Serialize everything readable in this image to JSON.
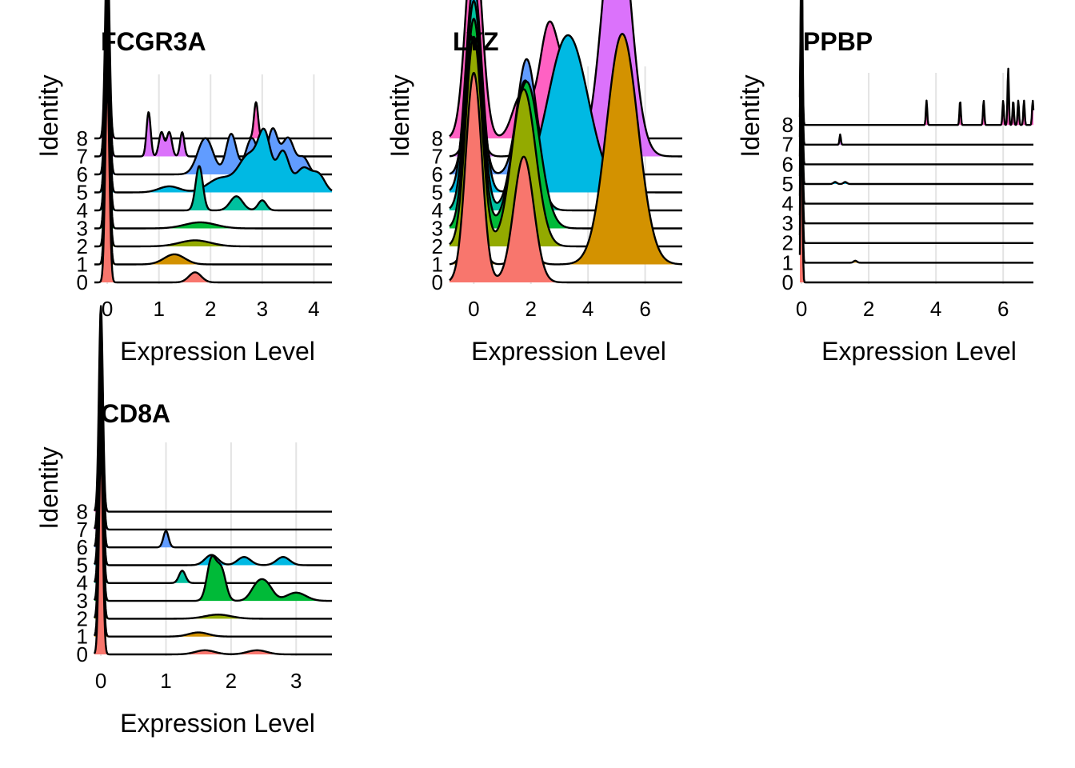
{
  "colors": {
    "0": "#F8766D",
    "1": "#D39200",
    "2": "#93AA00",
    "3": "#00BA38",
    "4": "#00C19F",
    "5": "#00B9E3",
    "6": "#619CFF",
    "7": "#DB72FB",
    "8": "#FF61C3"
  },
  "chart_data": [
    {
      "type": "ridgeline",
      "title": "FCGR3A",
      "xlabel": "Expression Level",
      "ylabel": "Identity",
      "xlim": [
        -0.25,
        4.35
      ],
      "xticks": [
        0,
        1,
        2,
        3,
        4
      ],
      "identities": [
        "0",
        "1",
        "2",
        "3",
        "4",
        "5",
        "6",
        "7",
        "8"
      ],
      "series": [
        {
          "name": "0",
          "peaks": [
            [
              0,
              0.04,
              1.0
            ],
            [
              1.7,
              0.12,
              0.05
            ]
          ]
        },
        {
          "name": "1",
          "peaks": [
            [
              0,
              0.04,
              1.0
            ],
            [
              1.3,
              0.2,
              0.05
            ]
          ]
        },
        {
          "name": "2",
          "peaks": [
            [
              0,
              0.04,
              1.0
            ],
            [
              1.7,
              0.3,
              0.03
            ]
          ]
        },
        {
          "name": "3",
          "peaks": [
            [
              0,
              0.04,
              1.0
            ],
            [
              1.8,
              0.3,
              0.03
            ]
          ]
        },
        {
          "name": "4",
          "peaks": [
            [
              0,
              0.04,
              1.0
            ],
            [
              1.78,
              0.07,
              0.22
            ],
            [
              2.5,
              0.12,
              0.07
            ],
            [
              3.0,
              0.08,
              0.05
            ]
          ]
        },
        {
          "name": "5",
          "peaks": [
            [
              0,
              0.04,
              1.0
            ],
            [
              1.2,
              0.2,
              0.03
            ],
            [
              2.2,
              0.25,
              0.07
            ],
            [
              2.75,
              0.2,
              0.18
            ],
            [
              3.05,
              0.12,
              0.25
            ],
            [
              3.4,
              0.12,
              0.2
            ],
            [
              3.8,
              0.15,
              0.12
            ],
            [
              4.1,
              0.12,
              0.08
            ]
          ]
        },
        {
          "name": "6",
          "peaks": [
            [
              0,
              0.04,
              1.0
            ],
            [
              1.9,
              0.15,
              0.18
            ],
            [
              2.4,
              0.1,
              0.2
            ],
            [
              2.8,
              0.12,
              0.18
            ],
            [
              3.2,
              0.1,
              0.22
            ],
            [
              3.5,
              0.12,
              0.18
            ],
            [
              3.8,
              0.1,
              0.08
            ]
          ]
        },
        {
          "name": "7",
          "peaks": [
            [
              0,
              0.04,
              1.0
            ],
            [
              0.8,
              0.04,
              0.22
            ],
            [
              1.05,
              0.05,
              0.12
            ],
            [
              1.2,
              0.05,
              0.12
            ],
            [
              1.45,
              0.04,
              0.12
            ]
          ]
        },
        {
          "name": "8",
          "peaks": [
            [
              0,
              0.04,
              1.0
            ],
            [
              2.88,
              0.04,
              0.18
            ]
          ]
        }
      ]
    },
    {
      "type": "ridgeline",
      "title": "LYZ",
      "xlabel": "Expression Level",
      "ylabel": "Identity",
      "xlim": [
        -0.85,
        7.3
      ],
      "xticks": [
        0,
        2,
        4,
        6
      ],
      "identities": [
        "0",
        "1",
        "2",
        "3",
        "4",
        "5",
        "6",
        "7",
        "8"
      ],
      "series": [
        {
          "name": "0",
          "peaks": [
            [
              0,
              0.28,
              1.0
            ],
            [
              1.75,
              0.35,
              0.6
            ]
          ]
        },
        {
          "name": "1",
          "peaks": [
            [
              0,
              0.25,
              0.35
            ],
            [
              5.2,
              0.55,
              1.1
            ],
            [
              1.8,
              0.3,
              0.1
            ]
          ]
        },
        {
          "name": "2",
          "peaks": [
            [
              0,
              0.28,
              1.0
            ],
            [
              1.75,
              0.42,
              0.75
            ]
          ]
        },
        {
          "name": "3",
          "peaks": [
            [
              0,
              0.28,
              1.0
            ],
            [
              1.85,
              0.45,
              0.7
            ]
          ]
        },
        {
          "name": "4",
          "peaks": [
            [
              0,
              0.28,
              1.0
            ],
            [
              1.8,
              0.38,
              0.62
            ]
          ]
        },
        {
          "name": "5",
          "peaks": [
            [
              0,
              0.28,
              1.0
            ],
            [
              3.3,
              0.7,
              0.75
            ]
          ]
        },
        {
          "name": "6",
          "peaks": [
            [
              0,
              0.25,
              0.9
            ],
            [
              1.85,
              0.32,
              0.55
            ]
          ]
        },
        {
          "name": "7",
          "peaks": [
            [
              0,
              0.25,
              0.25
            ],
            [
              2.0,
              0.3,
              0.08
            ],
            [
              5.0,
              0.48,
              1.25
            ]
          ]
        },
        {
          "name": "8",
          "peaks": [
            [
              0,
              0.28,
              1.0
            ],
            [
              1.65,
              0.3,
              0.2
            ],
            [
              2.65,
              0.35,
              0.55
            ],
            [
              3.3,
              0.25,
              0.2
            ]
          ]
        }
      ]
    },
    {
      "type": "ridgeline",
      "title": "PPBP",
      "xlabel": "Expression Level",
      "ylabel": "Identity",
      "xlim": [
        -0.05,
        6.9
      ],
      "xticks": [
        0,
        2,
        4,
        6
      ],
      "identities": [
        "0",
        "1",
        "2",
        "3",
        "4",
        "5",
        "6",
        "7",
        "8"
      ],
      "series": [
        {
          "name": "0",
          "peaks": [
            [
              0,
              0.025,
              1.0
            ]
          ]
        },
        {
          "name": "1",
          "peaks": [
            [
              0,
              0.025,
              1.0
            ],
            [
              1.6,
              0.05,
              0.01
            ]
          ]
        },
        {
          "name": "2",
          "peaks": [
            [
              0,
              0.025,
              1.0
            ]
          ]
        },
        {
          "name": "3",
          "peaks": [
            [
              0,
              0.025,
              1.0
            ]
          ]
        },
        {
          "name": "4",
          "peaks": [
            [
              0,
              0.025,
              1.0
            ]
          ]
        },
        {
          "name": "5",
          "peaks": [
            [
              0,
              0.025,
              1.0
            ],
            [
              1.0,
              0.05,
              0.01
            ],
            [
              1.3,
              0.05,
              0.01
            ]
          ]
        },
        {
          "name": "6",
          "peaks": [
            [
              0,
              0.025,
              1.0
            ]
          ]
        },
        {
          "name": "7",
          "peaks": [
            [
              0,
              0.025,
              1.0
            ],
            [
              1.15,
              0.02,
              0.05
            ]
          ]
        },
        {
          "name": "8",
          "peaks": [
            [
              0,
              0.025,
              1.0
            ],
            [
              3.72,
              0.02,
              0.12
            ],
            [
              4.72,
              0.02,
              0.12
            ],
            [
              5.42,
              0.02,
              0.12
            ],
            [
              6.0,
              0.02,
              0.12
            ],
            [
              6.15,
              0.02,
              0.28
            ],
            [
              6.3,
              0.02,
              0.12
            ],
            [
              6.45,
              0.02,
              0.12
            ],
            [
              6.62,
              0.02,
              0.12
            ],
            [
              6.88,
              0.02,
              0.12
            ]
          ]
        }
      ]
    },
    {
      "type": "ridgeline",
      "title": "CD8A",
      "xlabel": "Expression Level",
      "ylabel": "Identity",
      "xlim": [
        -0.1,
        3.55
      ],
      "xticks": [
        0,
        1,
        2,
        3
      ],
      "identities": [
        "0",
        "1",
        "2",
        "3",
        "4",
        "5",
        "6",
        "7",
        "8"
      ],
      "series": [
        {
          "name": "0",
          "peaks": [
            [
              0,
              0.03,
              1.0
            ],
            [
              1.6,
              0.15,
              0.02
            ],
            [
              2.4,
              0.15,
              0.02
            ]
          ]
        },
        {
          "name": "1",
          "peaks": [
            [
              0,
              0.03,
              1.0
            ],
            [
              1.5,
              0.15,
              0.02
            ]
          ]
        },
        {
          "name": "2",
          "peaks": [
            [
              0,
              0.03,
              1.0
            ],
            [
              1.8,
              0.2,
              0.02
            ]
          ]
        },
        {
          "name": "3",
          "peaks": [
            [
              0,
              0.03,
              1.0
            ],
            [
              1.7,
              0.07,
              0.2
            ],
            [
              1.85,
              0.07,
              0.15
            ],
            [
              2.4,
              0.1,
              0.07
            ],
            [
              2.55,
              0.1,
              0.07
            ],
            [
              3.0,
              0.15,
              0.04
            ]
          ]
        },
        {
          "name": "4",
          "peaks": [
            [
              0,
              0.03,
              1.0
            ],
            [
              1.25,
              0.05,
              0.06
            ]
          ]
        },
        {
          "name": "5",
          "peaks": [
            [
              0,
              0.03,
              1.0
            ],
            [
              1.7,
              0.1,
              0.05
            ],
            [
              2.2,
              0.1,
              0.04
            ],
            [
              2.8,
              0.1,
              0.04
            ]
          ]
        },
        {
          "name": "6",
          "peaks": [
            [
              0,
              0.03,
              1.0
            ],
            [
              1.0,
              0.04,
              0.08
            ]
          ]
        },
        {
          "name": "7",
          "peaks": [
            [
              0,
              0.03,
              1.0
            ]
          ]
        },
        {
          "name": "8",
          "peaks": [
            [
              0,
              0.03,
              1.0
            ]
          ]
        }
      ]
    }
  ]
}
